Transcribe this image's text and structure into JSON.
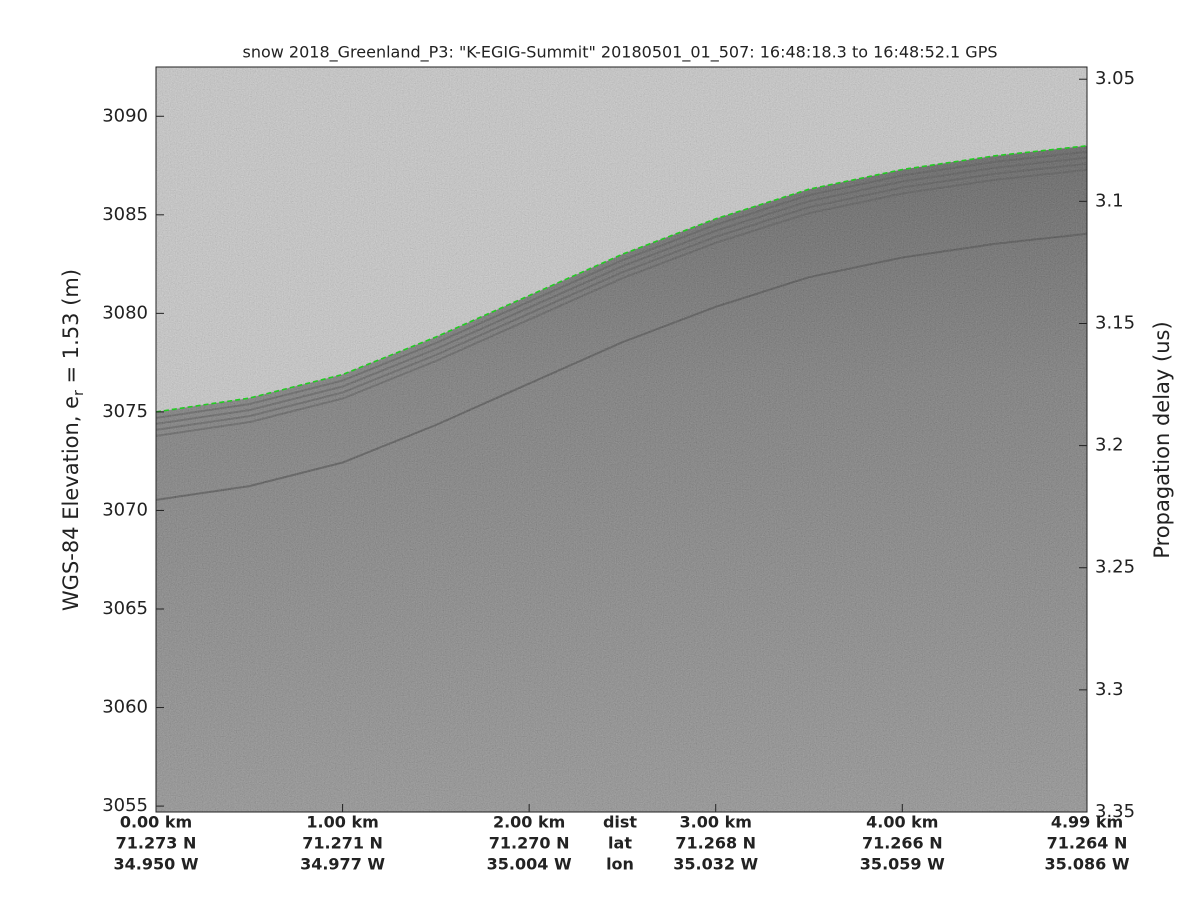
{
  "chart_data": {
    "type": "line",
    "title": "snow 2018_Greenland_P3: \"K-EGIG-Summit\"  20180501_01_507: 16:48:18.3 to 16:48:52.1 GPS",
    "ylabel": "WGS-84 Elevation, e",
    "ylabel_sub": "r",
    "ylabel_rest": " = 1.53 (m)",
    "y2label": "Propagation delay (us)",
    "xlim": [
      0,
      4.99
    ],
    "xticks": [
      {
        "value": 0,
        "label": "0.00 km"
      },
      {
        "value": 1,
        "label": "1.00 km"
      },
      {
        "value": 2,
        "label": "2.00 km"
      },
      {
        "value": 3,
        "label": "3.00 km"
      },
      {
        "value": 4,
        "label": "4.00 km"
      },
      {
        "value": 4.99,
        "label": "4.99 km"
      }
    ],
    "lat_labels": [
      "71.273 N",
      "71.271 N",
      "71.270 N",
      "71.268 N",
      "71.266 N",
      "71.264 N"
    ],
    "lon_labels": [
      "34.950 W",
      "34.977 W",
      "35.004 W",
      "35.032 W",
      "35.059 W",
      "35.086 W"
    ],
    "row_labels": [
      "dist",
      "lat",
      "lon"
    ],
    "ylim": [
      3054.7,
      3092.5
    ],
    "yticks": [
      3055,
      3060,
      3065,
      3070,
      3075,
      3080,
      3085,
      3090
    ],
    "y2lim": [
      3.35,
      3.045
    ],
    "y2ticks": [
      3.05,
      3.1,
      3.15,
      3.2,
      3.25,
      3.3,
      3.35
    ],
    "series": [
      {
        "color": "#22cc22",
        "x": [
          0,
          0.5,
          1,
          1.5,
          2,
          2.5,
          3,
          3.5,
          4,
          4.5,
          4.99
        ],
        "values": [
          3075.0,
          3075.7,
          3076.9,
          3078.8,
          3080.9,
          3083.0,
          3084.8,
          3086.3,
          3087.3,
          3088.0,
          3088.5
        ]
      }
    ]
  }
}
